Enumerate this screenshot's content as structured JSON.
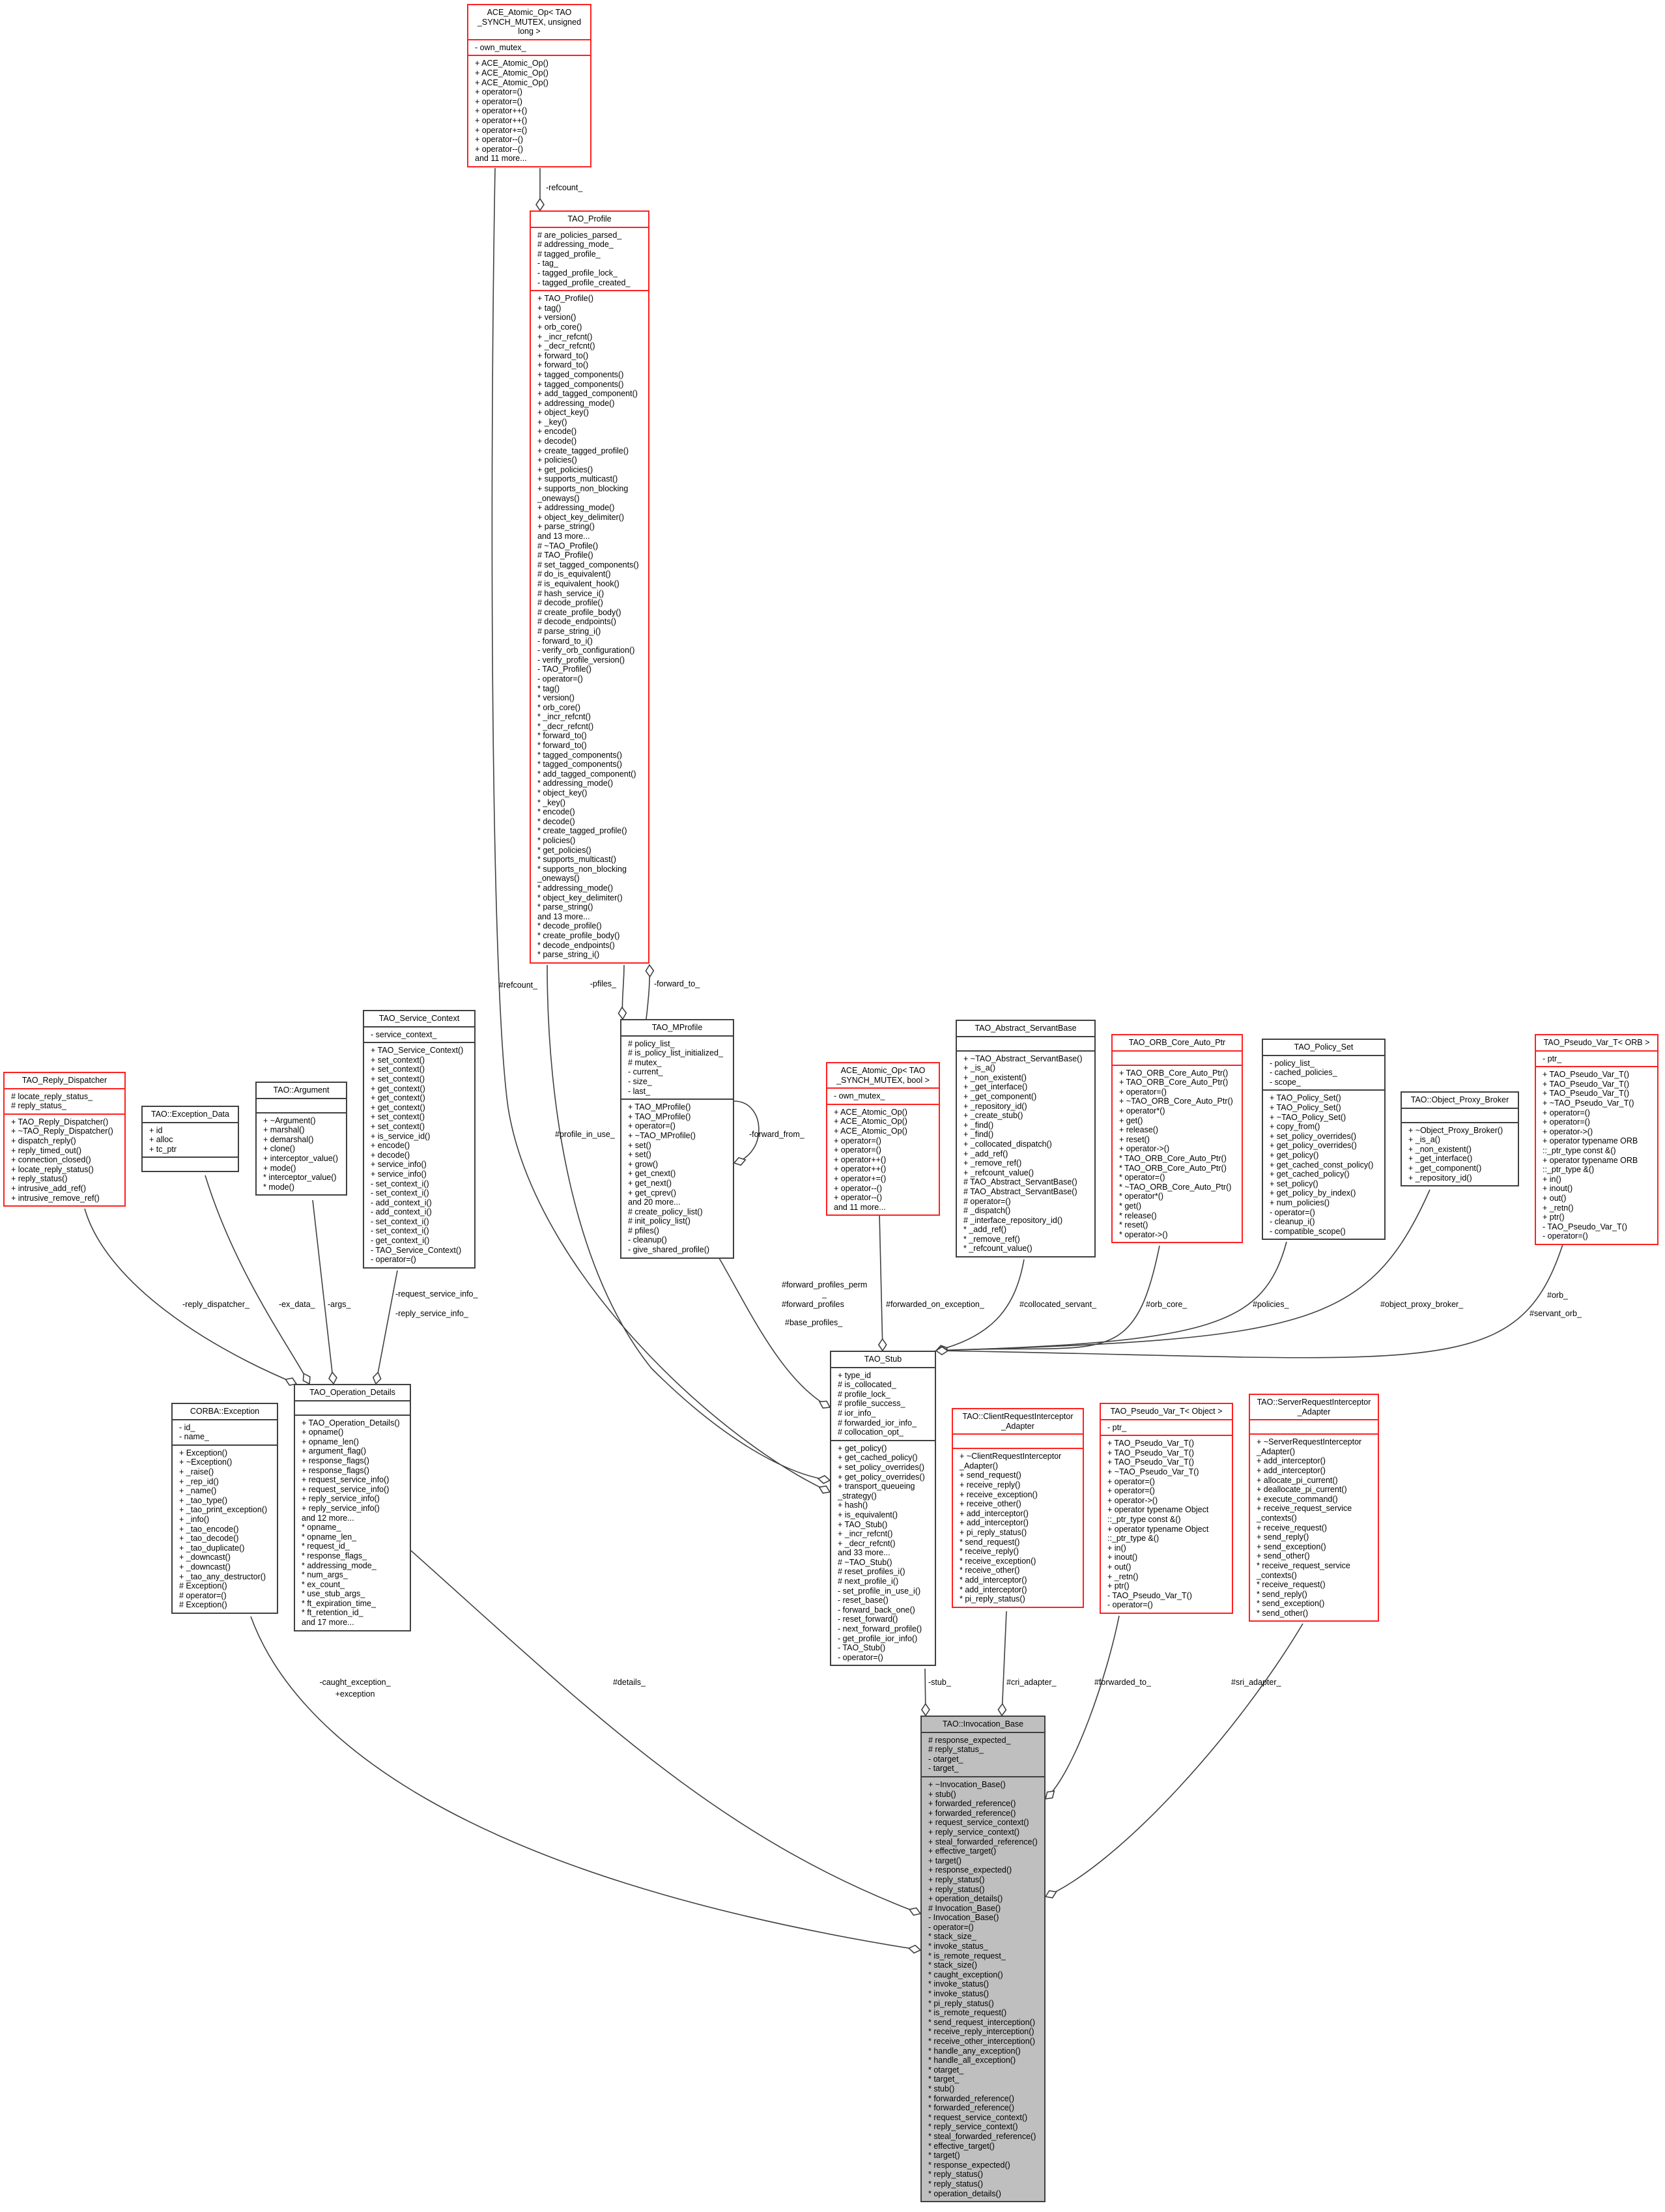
{
  "colors": {
    "truncated_border": "#ff2020",
    "normal_border": "#404040",
    "focus_fill": "#bfbfbf",
    "edge": "#404040"
  },
  "classes": {
    "ace_ulong": {
      "title": [
        "ACE_Atomic_Op< TAO",
        "_SYNCH_MUTEX, unsigned",
        "long >"
      ],
      "style": "red",
      "attributes": [
        "- own_mutex_"
      ],
      "methods": [
        "+ ACE_Atomic_Op()",
        "+ ACE_Atomic_Op()",
        "+ ACE_Atomic_Op()",
        "+ operator=()",
        "+ operator=()",
        "+ operator++()",
        "+ operator++()",
        "+ operator+=()",
        "+ operator--()",
        "+ operator--()",
        "and 11 more..."
      ]
    },
    "profile": {
      "title": [
        "TAO_Profile"
      ],
      "style": "red",
      "attributes": [
        "# are_policies_parsed_",
        "# addressing_mode_",
        "# tagged_profile_",
        "- tag_",
        "- tagged_profile_lock_",
        "- tagged_profile_created_"
      ],
      "methods": [
        "+ TAO_Profile()",
        "+ tag()",
        "+ version()",
        "+ orb_core()",
        "+ _incr_refcnt()",
        "+ _decr_refcnt()",
        "+ forward_to()",
        "+ forward_to()",
        "+ tagged_components()",
        "+ tagged_components()",
        "+ add_tagged_component()",
        "+ addressing_mode()",
        "+ object_key()",
        "+ _key()",
        "+ encode()",
        "+ decode()",
        "+ create_tagged_profile()",
        "+ policies()",
        "+ get_policies()",
        "+ supports_multicast()",
        "+ supports_non_blocking",
        "_oneways()",
        "+ addressing_mode()",
        "+ object_key_delimiter()",
        "+ parse_string()",
        "and 13 more...",
        "# ~TAO_Profile()",
        "# TAO_Profile()",
        "# set_tagged_components()",
        "# do_is_equivalent()",
        "# is_equivalent_hook()",
        "# hash_service_i()",
        "# decode_profile()",
        "# create_profile_body()",
        "# decode_endpoints()",
        "# parse_string_i()",
        "- forward_to_i()",
        "- verify_orb_configuration()",
        "- verify_profile_version()",
        "- TAO_Profile()",
        "- operator=()",
        "* tag()",
        "* version()",
        "* orb_core()",
        "* _incr_refcnt()",
        "* _decr_refcnt()",
        "* forward_to()",
        "* forward_to()",
        "* tagged_components()",
        "* tagged_components()",
        "* add_tagged_component()",
        "* addressing_mode()",
        "* object_key()",
        "* _key()",
        "* encode()",
        "* decode()",
        "* create_tagged_profile()",
        "* policies()",
        "* get_policies()",
        "* supports_multicast()",
        "* supports_non_blocking",
        "_oneways()",
        "* addressing_mode()",
        "* object_key_delimiter()",
        "* parse_string()",
        "and 13 more...",
        "* decode_profile()",
        "* create_profile_body()",
        "* decode_endpoints()",
        "* parse_string_i()"
      ]
    },
    "mprofile": {
      "title": [
        "TAO_MProfile"
      ],
      "style": "black",
      "attributes": [
        "# policy_list_",
        "# is_policy_list_initialized_",
        "# mutex_",
        "- current_",
        "- size_",
        "- last_"
      ],
      "methods": [
        "+ TAO_MProfile()",
        "+ TAO_MProfile()",
        "+ operator=()",
        "+ ~TAO_MProfile()",
        "+ set()",
        "+ set()",
        "+ grow()",
        "+ get_cnext()",
        "+ get_next()",
        "+ get_cprev()",
        "and 20 more...",
        "# create_policy_list()",
        "# init_policy_list()",
        "# pfiles()",
        "- cleanup()",
        "- give_shared_profile()"
      ]
    },
    "service_context": {
      "title": [
        "TAO_Service_Context"
      ],
      "style": "black",
      "attributes": [
        "- service_context_"
      ],
      "methods": [
        "+ TAO_Service_Context()",
        "+ set_context()",
        "+ set_context()",
        "+ set_context()",
        "+ get_context()",
        "+ get_context()",
        "+ get_context()",
        "+ set_context()",
        "+ set_context()",
        "+ is_service_id()",
        "+ encode()",
        "+ decode()",
        "+ service_info()",
        "+ service_info()",
        "- set_context_i()",
        "- set_context_i()",
        "- add_context_i()",
        "- add_context_i()",
        "- set_context_i()",
        "- set_context_i()",
        "- get_context_i()",
        "- TAO_Service_Context()",
        "- operator=()"
      ]
    },
    "argument": {
      "title": [
        "TAO::Argument"
      ],
      "style": "black",
      "attributes": [],
      "methods": [
        "+ ~Argument()",
        "+ marshal()",
        "+ demarshal()",
        "+ clone()",
        "+ interceptor_value()",
        "+ mode()",
        "* interceptor_value()",
        "* mode()"
      ]
    },
    "exception_data": {
      "title": [
        "TAO::Exception_Data"
      ],
      "style": "black",
      "attributes": [
        "+ id",
        "+ alloc",
        "+ tc_ptr"
      ],
      "methods": []
    },
    "reply_dispatcher": {
      "title": [
        "TAO_Reply_Dispatcher"
      ],
      "style": "red",
      "attributes": [
        "# locate_reply_status_",
        "# reply_status_"
      ],
      "methods": [
        "+ TAO_Reply_Dispatcher()",
        "+ ~TAO_Reply_Dispatcher()",
        "+ dispatch_reply()",
        "+ reply_timed_out()",
        "+ connection_closed()",
        "+ locate_reply_status()",
        "+ reply_status()",
        "+ intrusive_add_ref()",
        "+ intrusive_remove_ref()"
      ]
    },
    "ace_bool": {
      "title": [
        "ACE_Atomic_Op< TAO",
        "_SYNCH_MUTEX, bool >"
      ],
      "style": "red",
      "attributes": [
        "- own_mutex_"
      ],
      "methods": [
        "+ ACE_Atomic_Op()",
        "+ ACE_Atomic_Op()",
        "+ ACE_Atomic_Op()",
        "+ operator=()",
        "+ operator=()",
        "+ operator++()",
        "+ operator++()",
        "+ operator+=()",
        "+ operator--()",
        "+ operator--()",
        "and 11 more..."
      ]
    },
    "abstract_servant": {
      "title": [
        "TAO_Abstract_ServantBase"
      ],
      "style": "black",
      "attributes": [],
      "methods": [
        "+ ~TAO_Abstract_ServantBase()",
        "+ _is_a()",
        "+ _non_existent()",
        "+ _get_interface()",
        "+ _get_component()",
        "+ _repository_id()",
        "+ _create_stub()",
        "+ _find()",
        "+ _find()",
        "+ _collocated_dispatch()",
        "+ _add_ref()",
        "+ _remove_ref()",
        "+ _refcount_value()",
        "# TAO_Abstract_ServantBase()",
        "# TAO_Abstract_ServantBase()",
        "# operator=()",
        "# _dispatch()",
        "# _interface_repository_id()",
        "* _add_ref()",
        "* _remove_ref()",
        "* _refcount_value()"
      ]
    },
    "orb_core_auto_ptr": {
      "title": [
        "TAO_ORB_Core_Auto_Ptr"
      ],
      "style": "red",
      "attributes": [],
      "methods": [
        "+ TAO_ORB_Core_Auto_Ptr()",
        "+ TAO_ORB_Core_Auto_Ptr()",
        "+ operator=()",
        "+ ~TAO_ORB_Core_Auto_Ptr()",
        "+ operator*()",
        "+ get()",
        "+ release()",
        "+ reset()",
        "+ operator->()",
        "* TAO_ORB_Core_Auto_Ptr()",
        "* TAO_ORB_Core_Auto_Ptr()",
        "* operator=()",
        "* ~TAO_ORB_Core_Auto_Ptr()",
        "* operator*()",
        "* get()",
        "* release()",
        "* reset()",
        "* operator->()"
      ]
    },
    "policy_set": {
      "title": [
        "TAO_Policy_Set"
      ],
      "style": "black",
      "attributes": [
        "- policy_list_",
        "- cached_policies_",
        "- scope_"
      ],
      "methods": [
        "+ TAO_Policy_Set()",
        "+ TAO_Policy_Set()",
        "+ ~TAO_Policy_Set()",
        "+ copy_from()",
        "+ set_policy_overrides()",
        "+ get_policy_overrides()",
        "+ get_policy()",
        "+ get_cached_const_policy()",
        "+ get_cached_policy()",
        "+ set_policy()",
        "+ get_policy_by_index()",
        "+ num_policies()",
        "- operator=()",
        "- cleanup_i()",
        "- compatible_scope()"
      ]
    },
    "object_proxy_broker": {
      "title": [
        "TAO::Object_Proxy_Broker"
      ],
      "style": "black",
      "attributes": [],
      "methods": [
        "+ ~Object_Proxy_Broker()",
        "+ _is_a()",
        "+ _non_existent()",
        "+ _get_interface()",
        "+ _get_component()",
        "+ _repository_id()"
      ]
    },
    "pseudo_orb": {
      "title": [
        "TAO_Pseudo_Var_T< ORB >"
      ],
      "style": "red",
      "attributes": [
        "- ptr_"
      ],
      "methods": [
        "+ TAO_Pseudo_Var_T()",
        "+ TAO_Pseudo_Var_T()",
        "+ TAO_Pseudo_Var_T()",
        "+ ~TAO_Pseudo_Var_T()",
        "+ operator=()",
        "+ operator=()",
        "+ operator->()",
        "+ operator typename ORB",
        "::_ptr_type const &()",
        "+ operator typename ORB",
        "::_ptr_type &()",
        "+ in()",
        "+ inout()",
        "+ out()",
        "+ _retn()",
        "+ ptr()",
        "- TAO_Pseudo_Var_T()",
        "- operator=()"
      ]
    },
    "corba_exception": {
      "title": [
        "CORBA::Exception"
      ],
      "style": "black",
      "attributes": [
        "- id_",
        "- name_"
      ],
      "methods": [
        "+ Exception()",
        "+ ~Exception()",
        "+ _raise()",
        "+ _rep_id()",
        "+ _name()",
        "+ _tao_type()",
        "+ _tao_print_exception()",
        "+ _info()",
        "+ _tao_encode()",
        "+ _tao_decode()",
        "+ _tao_duplicate()",
        "+ _downcast()",
        "+ _downcast()",
        "+ _tao_any_destructor()",
        "# Exception()",
        "# operator=()",
        "# Exception()"
      ]
    },
    "op_details": {
      "title": [
        "TAO_Operation_Details"
      ],
      "style": "black",
      "attributes": [],
      "methods": [
        "+ TAO_Operation_Details()",
        "+ opname()",
        "+ opname_len()",
        "+ argument_flag()",
        "+ response_flags()",
        "+ response_flags()",
        "+ request_service_info()",
        "+ request_service_info()",
        "+ reply_service_info()",
        "+ reply_service_info()",
        "and 12 more...",
        "* opname_",
        "* opname_len_",
        "* request_id_",
        "* response_flags_",
        "* addressing_mode_",
        "* num_args_",
        "* ex_count_",
        "* use_stub_args_",
        "* ft_expiration_time_",
        "* ft_retention_id_",
        "and 17 more..."
      ]
    },
    "stub": {
      "title": [
        "TAO_Stub"
      ],
      "style": "black",
      "attributes": [
        "+ type_id",
        "# is_collocated_",
        "# profile_lock_",
        "# profile_success_",
        "# ior_info_",
        "# forwarded_ior_info_",
        "# collocation_opt_"
      ],
      "methods": [
        "+ get_policy()",
        "+ get_cached_policy()",
        "+ set_policy_overrides()",
        "+ get_policy_overrides()",
        "+ transport_queueing",
        "_strategy()",
        "+ hash()",
        "+ is_equivalent()",
        "+ TAO_Stub()",
        "+ _incr_refcnt()",
        "+ _decr_refcnt()",
        "and 33 more...",
        "# ~TAO_Stub()",
        "# reset_profiles_i()",
        "# next_profile_i()",
        "- set_profile_in_use_i()",
        "- reset_base()",
        "- forward_back_one()",
        "- reset_forward()",
        "- next_forward_profile()",
        "- get_profile_ior_info()",
        "- TAO_Stub()",
        "- operator=()"
      ]
    },
    "client_adapter": {
      "title": [
        "TAO::ClientRequestInterceptor",
        "_Adapter"
      ],
      "style": "red",
      "attributes": [],
      "methods": [
        "+ ~ClientRequestInterceptor",
        "_Adapter()",
        "+ send_request()",
        "+ receive_reply()",
        "+ receive_exception()",
        "+ receive_other()",
        "+ add_interceptor()",
        "+ add_interceptor()",
        "+ pi_reply_status()",
        "* send_request()",
        "* receive_reply()",
        "* receive_exception()",
        "* receive_other()",
        "* add_interceptor()",
        "* add_interceptor()",
        "* pi_reply_status()"
      ]
    },
    "pseudo_object": {
      "title": [
        "TAO_Pseudo_Var_T< Object >"
      ],
      "style": "red",
      "attributes": [
        "- ptr_"
      ],
      "methods": [
        "+ TAO_Pseudo_Var_T()",
        "+ TAO_Pseudo_Var_T()",
        "+ TAO_Pseudo_Var_T()",
        "+ ~TAO_Pseudo_Var_T()",
        "+ operator=()",
        "+ operator=()",
        "+ operator->()",
        "+ operator typename Object",
        "::_ptr_type const &()",
        "+ operator typename Object",
        "::_ptr_type &()",
        "+ in()",
        "+ inout()",
        "+ out()",
        "+ _retn()",
        "+ ptr()",
        "- TAO_Pseudo_Var_T()",
        "- operator=()"
      ]
    },
    "server_adapter": {
      "title": [
        "TAO::ServerRequestInterceptor",
        "_Adapter"
      ],
      "style": "red",
      "attributes": [],
      "methods": [
        "+ ~ServerRequestInterceptor",
        "_Adapter()",
        "+ add_interceptor()",
        "+ add_interceptor()",
        "+ allocate_pi_current()",
        "+ deallocate_pi_current()",
        "+ execute_command()",
        "+ receive_request_service",
        "_contexts()",
        "+ receive_request()",
        "+ send_reply()",
        "+ send_exception()",
        "+ send_other()",
        "* receive_request_service",
        "_contexts()",
        "* receive_request()",
        "* send_reply()",
        "* send_exception()",
        "* send_other()"
      ]
    },
    "invocation": {
      "title": [
        "TAO::Invocation_Base"
      ],
      "style": "gray",
      "attributes": [
        "# response_expected_",
        "# reply_status_",
        "- otarget_",
        "- target_"
      ],
      "methods": [
        "+ ~Invocation_Base()",
        "+ stub()",
        "+ forwarded_reference()",
        "+ forwarded_reference()",
        "+ request_service_context()",
        "+ reply_service_context()",
        "+ steal_forwarded_reference()",
        "+ effective_target()",
        "+ target()",
        "+ response_expected()",
        "+ reply_status()",
        "+ reply_status()",
        "+ operation_details()",
        "# Invocation_Base()",
        "- Invocation_Base()",
        "- operator=()",
        "* stack_size_",
        "* invoke_status_",
        "* is_remote_request_",
        "* stack_size()",
        "* caught_exception()",
        "* invoke_status()",
        "* invoke_status()",
        "* pi_reply_status()",
        "* is_remote_request()",
        "* send_request_interception()",
        "* receive_reply_interception()",
        "* receive_other_interception()",
        "* handle_any_exception()",
        "* handle_all_exception()",
        "* otarget_",
        "* target_",
        "* stub()",
        "* forwarded_reference()",
        "* forwarded_reference()",
        "* request_service_context()",
        "* reply_service_context()",
        "* steal_forwarded_reference()",
        "* effective_target()",
        "* target()",
        "* response_expected()",
        "* reply_status()",
        "* reply_status()",
        "* operation_details()"
      ]
    }
  },
  "edges": [
    {
      "from": "ace_ulong",
      "to": "profile",
      "labels": [
        "-refcount_"
      ]
    },
    {
      "from": "ace_ulong",
      "to": "stub",
      "labels": [
        "#refcount_"
      ]
    },
    {
      "from": "profile",
      "to": "stub",
      "labels": [
        "#profile_in_use_"
      ]
    },
    {
      "from": "profile",
      "to": "mprofile",
      "labels": [
        "-pfiles_"
      ]
    },
    {
      "from": "mprofile",
      "to": "profile",
      "labels": [
        "-forward_to_"
      ]
    },
    {
      "from": "mprofile",
      "to": "mprofile",
      "labels": [
        "-forward_from_"
      ]
    },
    {
      "from": "mprofile",
      "to": "stub",
      "labels": [
        "#forward_profiles_perm",
        "_",
        "#forward_profiles",
        "#base_profiles_"
      ]
    },
    {
      "from": "ace_bool",
      "to": "stub",
      "labels": [
        "#forwarded_on_exception_"
      ]
    },
    {
      "from": "abstract_servant",
      "to": "stub",
      "labels": [
        "#collocated_servant_"
      ]
    },
    {
      "from": "orb_core_auto_ptr",
      "to": "stub",
      "labels": [
        "#orb_core_"
      ]
    },
    {
      "from": "policy_set",
      "to": "stub",
      "labels": [
        "#policies_"
      ]
    },
    {
      "from": "object_proxy_broker",
      "to": "stub",
      "labels": [
        "#object_proxy_broker_"
      ]
    },
    {
      "from": "pseudo_orb",
      "to": "stub",
      "labels": [
        "#orb_",
        "#servant_orb_"
      ]
    },
    {
      "from": "reply_dispatcher",
      "to": "op_details",
      "labels": [
        "-reply_dispatcher_"
      ]
    },
    {
      "from": "exception_data",
      "to": "op_details",
      "labels": [
        "-ex_data_"
      ]
    },
    {
      "from": "argument",
      "to": "op_details",
      "labels": [
        "-args_"
      ]
    },
    {
      "from": "service_context",
      "to": "op_details",
      "labels": [
        "-request_service_info_",
        "-reply_service_info_"
      ]
    },
    {
      "from": "corba_exception",
      "to": "invocation",
      "labels": [
        "-caught_exception_",
        "+exception"
      ]
    },
    {
      "from": "op_details",
      "to": "invocation",
      "labels": [
        "#details_"
      ]
    },
    {
      "from": "stub",
      "to": "invocation",
      "labels": [
        "-stub_"
      ]
    },
    {
      "from": "client_adapter",
      "to": "invocation",
      "labels": [
        "#cri_adapter_"
      ]
    },
    {
      "from": "pseudo_object",
      "to": "invocation",
      "labels": [
        "#forwarded_to_"
      ]
    },
    {
      "from": "server_adapter",
      "to": "invocation",
      "labels": [
        "#sri_adapter_"
      ]
    }
  ]
}
